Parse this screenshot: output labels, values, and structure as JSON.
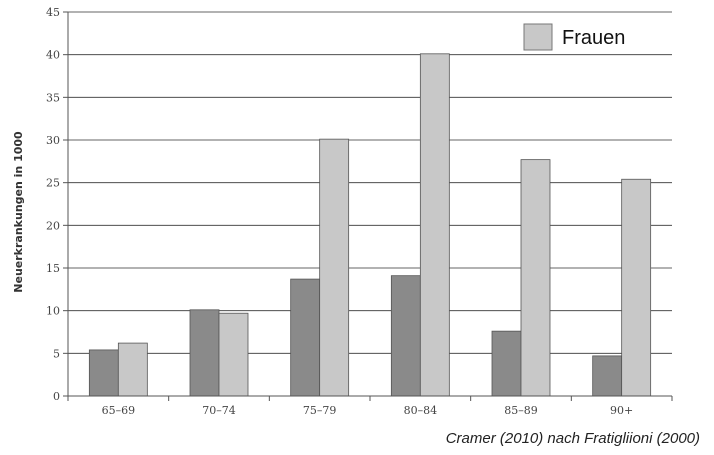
{
  "chart_data": {
    "type": "bar",
    "categories": [
      "65–69",
      "70–74",
      "75–79",
      "80–84",
      "85–89",
      "90+"
    ],
    "series": [
      {
        "values": [
          5.4,
          10.1,
          13.7,
          14.1,
          7.6,
          4.7
        ],
        "color": "#8a8a8a"
      },
      {
        "name": "Frauen",
        "values": [
          6.2,
          9.7,
          30.1,
          40.1,
          27.7,
          25.4
        ],
        "color": "#c8c8c8"
      }
    ],
    "ylabel": "Neuerkrankungen in 1000",
    "ylim": [
      0,
      45
    ],
    "yticks": [
      0,
      5,
      10,
      15,
      20,
      25,
      30,
      35,
      40,
      45
    ],
    "grid": true,
    "legend_position": "top-right",
    "legend": [
      "Frauen"
    ]
  },
  "source_note": "Cramer (2010) nach Fratigliioni (2000)"
}
